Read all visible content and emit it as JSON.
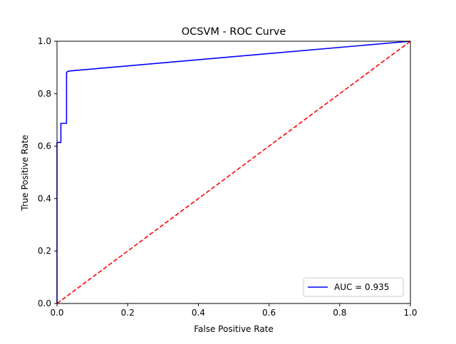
{
  "chart_data": {
    "type": "line",
    "title": "OCSVM - ROC Curve",
    "xlabel": "False Positive Rate",
    "ylabel": "True Positive Rate",
    "xlim": [
      0.0,
      1.0
    ],
    "ylim": [
      0.0,
      1.0
    ],
    "xticks": [
      0.0,
      0.2,
      0.4,
      0.6,
      0.8,
      1.0
    ],
    "yticks": [
      0.0,
      0.2,
      0.4,
      0.6,
      0.8,
      1.0
    ],
    "xtick_labels": [
      "0.0",
      "0.2",
      "0.4",
      "0.6",
      "0.8",
      "1.0"
    ],
    "ytick_labels": [
      "0.0",
      "0.2",
      "0.4",
      "0.6",
      "0.8",
      "1.0"
    ],
    "grid": false,
    "legend_position": "lower-right",
    "series": [
      {
        "name": "AUC = 0.935",
        "color": "#0000ff",
        "style": "solid",
        "x": [
          0.0,
          0.0,
          0.011,
          0.011,
          0.027,
          0.027,
          0.03,
          0.04,
          1.0
        ],
        "y": [
          0.0,
          0.614,
          0.614,
          0.687,
          0.687,
          0.88,
          0.885,
          0.887,
          1.0
        ]
      },
      {
        "color": "#ff0000",
        "style": "dashed",
        "x": [
          0.0,
          1.0
        ],
        "y": [
          0.0,
          1.0
        ]
      }
    ]
  }
}
